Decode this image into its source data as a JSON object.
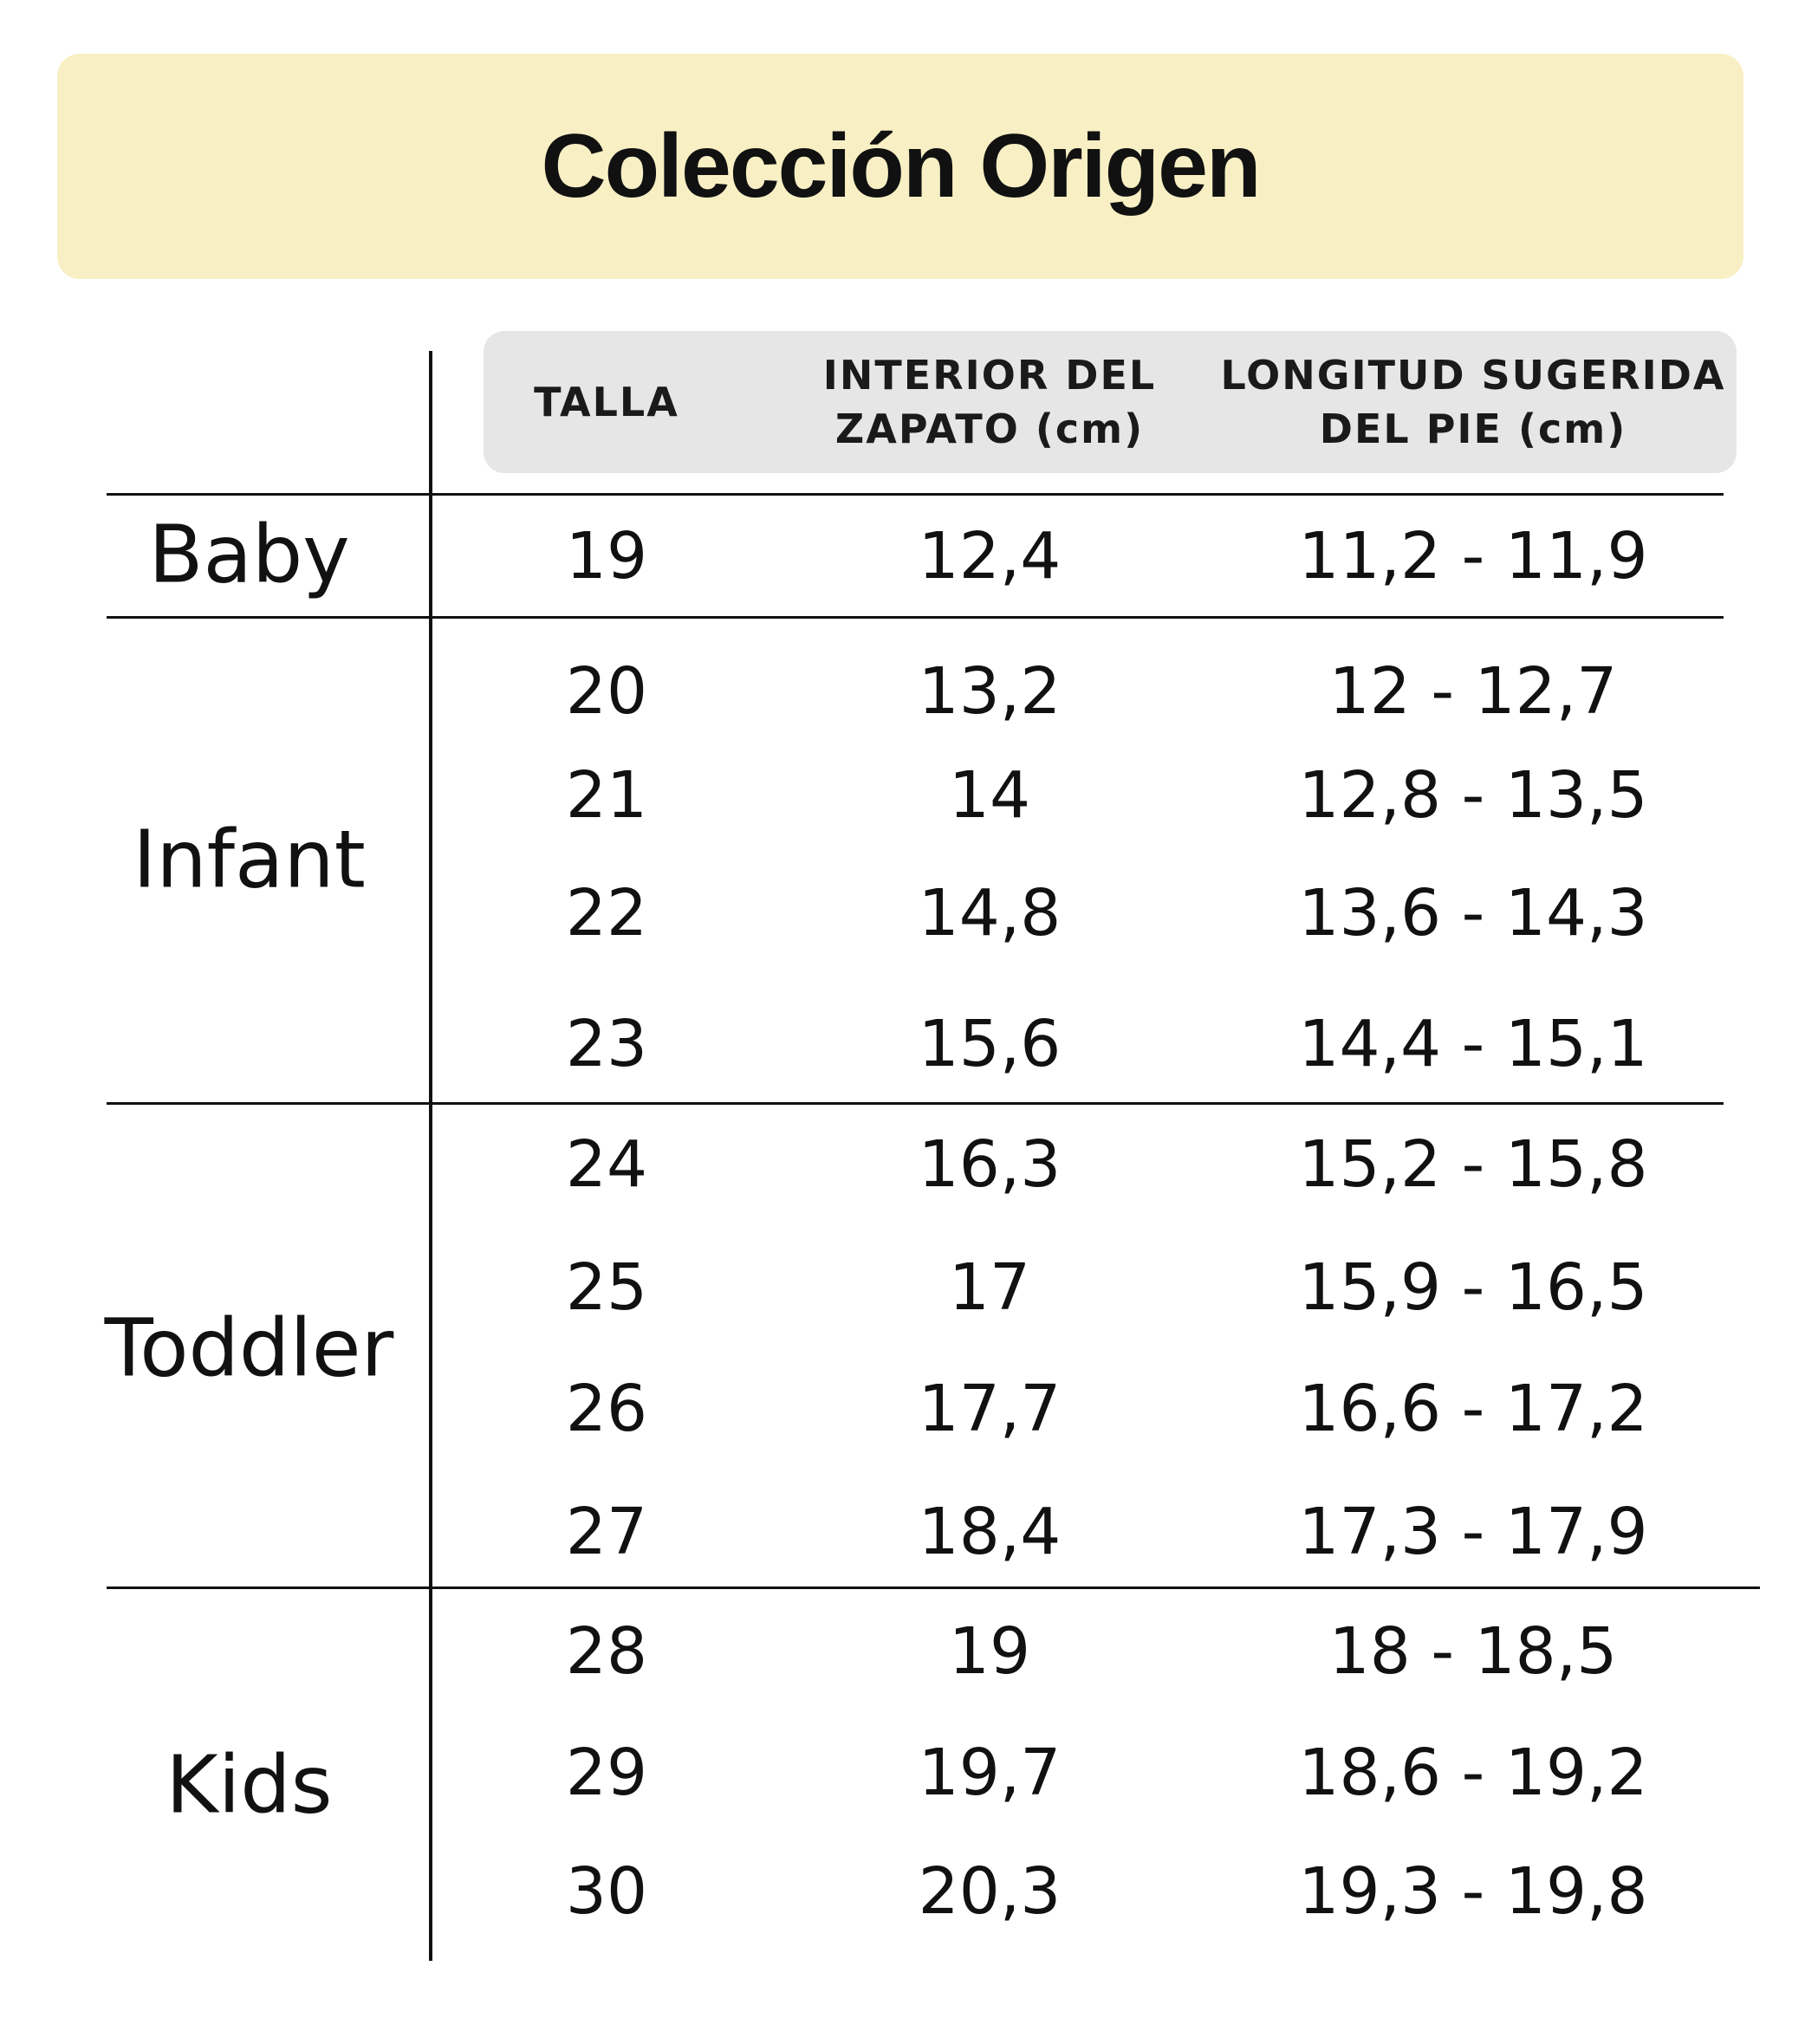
{
  "title": "Colección Origen",
  "headers": {
    "talla": "TALLA",
    "interior": "INTERIOR DEL\nZAPATO (cm)",
    "longitud": "LONGITUD SUGERIDA\nDEL PIE (cm)"
  },
  "categories": [
    "Baby",
    "Infant",
    "Toddler",
    "Kids"
  ],
  "rows": [
    {
      "talla": "19",
      "interior": "12,4",
      "longitud": "11,2  -  11,9"
    },
    {
      "talla": "20",
      "interior": "13,2",
      "longitud": "12  -  12,7"
    },
    {
      "talla": "21",
      "interior": "14",
      "longitud": "12,8  -  13,5"
    },
    {
      "talla": "22",
      "interior": "14,8",
      "longitud": "13,6  -  14,3"
    },
    {
      "talla": "23",
      "interior": "15,6",
      "longitud": "14,4  -  15,1"
    },
    {
      "talla": "24",
      "interior": "16,3",
      "longitud": "15,2  -  15,8"
    },
    {
      "talla": "25",
      "interior": "17",
      "longitud": "15,9  -  16,5"
    },
    {
      "talla": "26",
      "interior": "17,7",
      "longitud": "16,6  -  17,2"
    },
    {
      "talla": "27",
      "interior": "18,4",
      "longitud": "17,3  -  17,9"
    },
    {
      "talla": "28",
      "interior": "19",
      "longitud": "18  -  18,5"
    },
    {
      "talla": "29",
      "interior": "19,7",
      "longitud": "18,6  -  19,2"
    },
    {
      "talla": "30",
      "interior": "20,3",
      "longitud": "19,3  -  19,8"
    }
  ]
}
